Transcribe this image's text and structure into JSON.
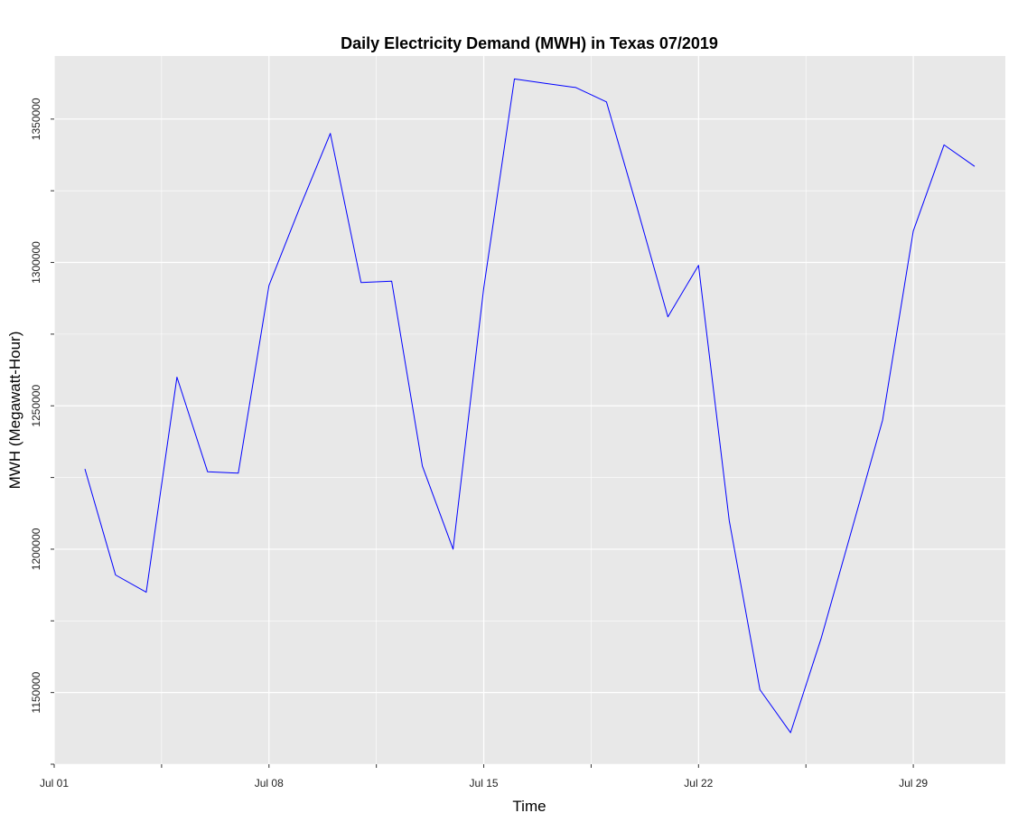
{
  "chart_data": {
    "type": "line",
    "title": "Daily Electricity Demand (MWH) in Texas 07/2019",
    "xlabel": "Time",
    "ylabel": "MWH (Megawatt-Hour)",
    "x_tick_labels": [
      "Jul 01",
      "Jul 08",
      "Jul 15",
      "Jul 22",
      "Jul 29"
    ],
    "y_tick_labels": [
      "1150000",
      "1200000",
      "1250000",
      "1300000",
      "1350000"
    ],
    "ylim": [
      1125000,
      1372000
    ],
    "x_range": [
      "2019-07-01",
      "2019-08-01"
    ],
    "grid": true,
    "colors": {
      "line": "#0000ff",
      "panel": "#e8e8e8",
      "grid": "#ffffff"
    },
    "series": [
      {
        "x": [
          "2019-07-02",
          "2019-07-03",
          "2019-07-04",
          "2019-07-05",
          "2019-07-06",
          "2019-07-07",
          "2019-07-08",
          "2019-07-09",
          "2019-07-10",
          "2019-07-11",
          "2019-07-12",
          "2019-07-13",
          "2019-07-14",
          "2019-07-15",
          "2019-07-16",
          "2019-07-17",
          "2019-07-18",
          "2019-07-19",
          "2019-07-20",
          "2019-07-21",
          "2019-07-22",
          "2019-07-23",
          "2019-07-24",
          "2019-07-25",
          "2019-07-26",
          "2019-07-27",
          "2019-07-28",
          "2019-07-29",
          "2019-07-30",
          "2019-07-31"
        ],
        "values": [
          1228000,
          1191000,
          1185000,
          1260000,
          1227000,
          1226500,
          1292000,
          1319000,
          1345000,
          1293000,
          1293500,
          1229000,
          1200000,
          1291000,
          1364000,
          1362500,
          1361000,
          1356000,
          1319000,
          1281000,
          1299000,
          1210000,
          1151000,
          1136000,
          1169000,
          1207000,
          1245000,
          1311000,
          1341000,
          1333500
        ]
      }
    ]
  }
}
